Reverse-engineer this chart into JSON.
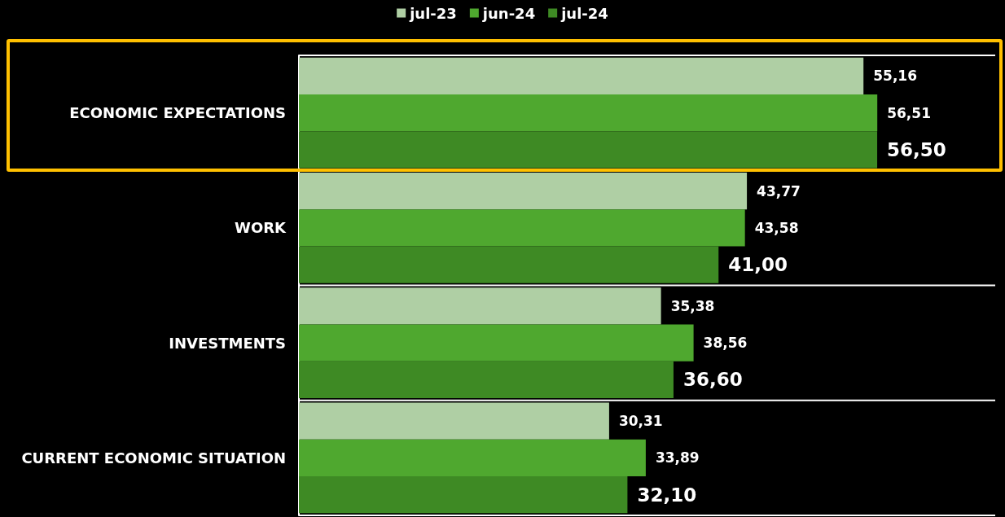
{
  "chart_data": {
    "type": "bar",
    "orientation": "horizontal",
    "categories": [
      "ECONOMIC EXPECTATIONS",
      "WORK",
      "INVESTMENTS",
      "CURRENT ECONOMIC SITUATION"
    ],
    "series": [
      {
        "name": "jul-23",
        "color": "#afcfa4",
        "values": [
          55.16,
          43.77,
          35.38,
          30.31
        ],
        "value_labels": [
          "55,16",
          "43,77",
          "35,38",
          "30,31"
        ]
      },
      {
        "name": "jun-24",
        "color": "#4fa82f",
        "values": [
          56.51,
          43.58,
          38.56,
          33.89
        ],
        "value_labels": [
          "56,51",
          "43,58",
          "38,56",
          "33,89"
        ]
      },
      {
        "name": "jul-24",
        "color": "#3e8a24",
        "values": [
          56.5,
          41.0,
          36.6,
          32.1
        ],
        "value_labels": [
          "56,50",
          "41,00",
          "36,60",
          "32,10"
        ]
      }
    ],
    "grid": "y",
    "legend": "top"
  }
}
